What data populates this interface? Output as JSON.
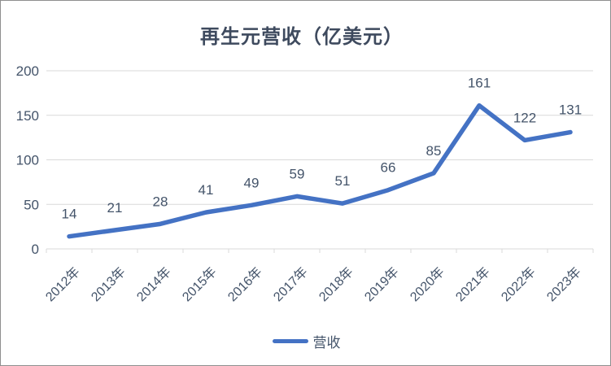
{
  "chart_data": {
    "type": "line",
    "title": "再生元营收（亿美元）",
    "categories": [
      "2012年",
      "2013年",
      "2014年",
      "2015年",
      "2016年",
      "2017年",
      "2018年",
      "2019年",
      "2020年",
      "2021年",
      "2022年",
      "2023年"
    ],
    "series": [
      {
        "name": "营收",
        "values": [
          14,
          21,
          28,
          41,
          49,
          59,
          51,
          66,
          85,
          161,
          122,
          131
        ]
      }
    ],
    "ylim": [
      0,
      200
    ],
    "yticks": [
      0,
      50,
      100,
      150,
      200
    ],
    "grid": "horizontal",
    "data_labels": true,
    "x_label_rotation": -45,
    "legend_position": "bottom",
    "line_color": "#4472C4",
    "gridline_color": "#D9D9D9",
    "axis_color": "#D9D9D9",
    "text_color": "#44546A",
    "title_color": "#3e4a5e"
  }
}
